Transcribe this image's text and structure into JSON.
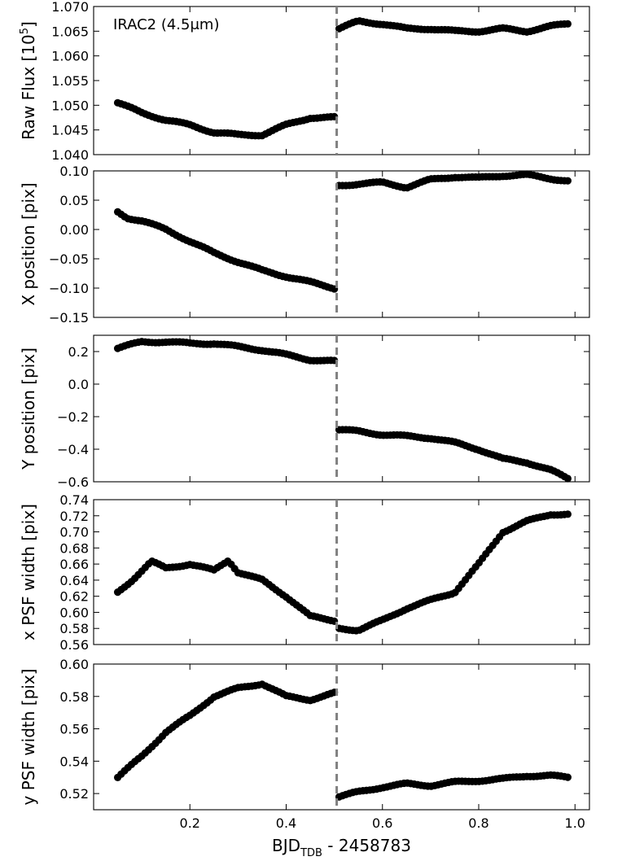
{
  "chart_data": {
    "type": "scatter",
    "xlabel": {
      "main": "BJD",
      "sub": "TDB",
      "suffix": " - 2458783"
    },
    "xlim": [
      0.0,
      1.03
    ],
    "xticks": [
      0.2,
      0.4,
      0.6,
      0.8,
      1.0
    ],
    "xtick_labels": [
      "0.2",
      "0.4",
      "0.6",
      "0.8",
      "1.0"
    ],
    "grid": false,
    "marker_color": "#000000",
    "vline": {
      "x": 0.505,
      "style": "dashed",
      "color": "#808080"
    },
    "annotation": {
      "text": "IRAC2 (4.5μm)",
      "location": "top-left",
      "panel": 0
    },
    "panels": [
      {
        "name": "raw-flux",
        "ylabel_main": "Raw Flux [10",
        "ylabel_sup": "5",
        "ylabel_end": "]",
        "ylim": [
          1.04,
          1.07
        ],
        "yticks": [
          1.04,
          1.045,
          1.05,
          1.055,
          1.06,
          1.065,
          1.07
        ],
        "ytick_labels": [
          "1.040",
          "1.045",
          "1.050",
          "1.055",
          "1.060",
          "1.065",
          "1.070"
        ],
        "segments": [
          {
            "x": [
              0.05,
              0.1,
              0.15,
              0.2,
              0.25,
              0.3,
              0.35,
              0.4,
              0.45,
              0.5
            ],
            "y": [
              1.0505,
              1.0485,
              1.047,
              1.046,
              1.0445,
              1.044,
              1.044,
              1.046,
              1.0475,
              1.0475
            ]
          },
          {
            "x": [
              0.51,
              0.55,
              0.6,
              0.65,
              0.7,
              0.75,
              0.8,
              0.85,
              0.9,
              0.95,
              0.985
            ],
            "y": [
              1.0655,
              1.067,
              1.0665,
              1.0655,
              1.0655,
              1.065,
              1.065,
              1.0655,
              1.065,
              1.066,
              1.0665
            ]
          }
        ]
      },
      {
        "name": "x-position",
        "ylabel_main": "X position [pix]",
        "ylim": [
          -0.15,
          0.1
        ],
        "yticks": [
          -0.15,
          -0.1,
          -0.05,
          0.0,
          0.05,
          0.1
        ],
        "ytick_labels": [
          "−0.15",
          "−0.10",
          "−0.05",
          "0.00",
          "0.05",
          "0.10"
        ],
        "segments": [
          {
            "x": [
              0.05,
              0.07,
              0.1,
              0.15,
              0.2,
              0.25,
              0.3,
              0.35,
              0.4,
              0.45,
              0.5
            ],
            "y": [
              0.03,
              0.02,
              0.015,
              0.0,
              -0.02,
              -0.04,
              -0.055,
              -0.07,
              -0.08,
              -0.09,
              -0.1
            ]
          },
          {
            "x": [
              0.51,
              0.55,
              0.6,
              0.65,
              0.7,
              0.75,
              0.8,
              0.85,
              0.9,
              0.95,
              0.985
            ],
            "y": [
              0.075,
              0.078,
              0.08,
              0.072,
              0.085,
              0.09,
              0.088,
              0.092,
              0.093,
              0.087,
              0.083
            ]
          }
        ]
      },
      {
        "name": "y-position",
        "ylabel_main": "Y position [pix]",
        "ylim": [
          -0.6,
          0.3
        ],
        "yticks": [
          -0.6,
          -0.4,
          -0.2,
          0.0,
          0.2
        ],
        "ytick_labels": [
          "−0.6",
          "−0.4",
          "−0.2",
          "0.0",
          "0.2"
        ],
        "segments": [
          {
            "x": [
              0.05,
              0.1,
              0.15,
              0.2,
              0.25,
              0.3,
              0.35,
              0.4,
              0.45,
              0.5
            ],
            "y": [
              0.22,
              0.26,
              0.26,
              0.25,
              0.25,
              0.23,
              0.21,
              0.18,
              0.15,
              0.14
            ]
          },
          {
            "x": [
              0.51,
              0.55,
              0.6,
              0.65,
              0.7,
              0.75,
              0.8,
              0.85,
              0.9,
              0.95,
              0.985
            ],
            "y": [
              -0.28,
              -0.29,
              -0.31,
              -0.32,
              -0.33,
              -0.36,
              -0.4,
              -0.46,
              -0.48,
              -0.53,
              -0.58
            ]
          }
        ]
      },
      {
        "name": "x-psf-width",
        "ylabel_main": "x PSF width [pix]",
        "ylim": [
          0.56,
          0.74
        ],
        "yticks": [
          0.56,
          0.58,
          0.6,
          0.62,
          0.64,
          0.66,
          0.68,
          0.7,
          0.72,
          0.74
        ],
        "ytick_labels": [
          "0.56",
          "0.58",
          "0.60",
          "0.62",
          "0.64",
          "0.66",
          "0.68",
          "0.70",
          "0.72",
          "0.74"
        ],
        "segments": [
          {
            "x": [
              0.05,
              0.08,
              0.12,
              0.15,
              0.2,
              0.25,
              0.28,
              0.3,
              0.35,
              0.4,
              0.45,
              0.5
            ],
            "y": [
              0.625,
              0.64,
              0.663,
              0.655,
              0.66,
              0.652,
              0.665,
              0.65,
              0.64,
              0.62,
              0.595,
              0.59
            ]
          },
          {
            "x": [
              0.51,
              0.55,
              0.6,
              0.65,
              0.7,
              0.75,
              0.8,
              0.85,
              0.9,
              0.95,
              0.985
            ],
            "y": [
              0.58,
              0.578,
              0.59,
              0.605,
              0.615,
              0.625,
              0.66,
              0.7,
              0.713,
              0.722,
              0.722
            ]
          }
        ]
      },
      {
        "name": "y-psf-width",
        "ylabel_main": "y PSF width [pix]",
        "ylim": [
          0.51,
          0.6
        ],
        "yticks": [
          0.52,
          0.54,
          0.56,
          0.58,
          0.6
        ],
        "ytick_labels": [
          "0.52",
          "0.54",
          "0.56",
          "0.58",
          "0.60"
        ],
        "segments": [
          {
            "x": [
              0.05,
              0.1,
              0.15,
              0.2,
              0.25,
              0.3,
              0.35,
              0.4,
              0.45,
              0.5
            ],
            "y": [
              0.53,
              0.543,
              0.558,
              0.568,
              0.58,
              0.585,
              0.588,
              0.58,
              0.578,
              0.582
            ]
          },
          {
            "x": [
              0.51,
              0.55,
              0.6,
              0.65,
              0.7,
              0.75,
              0.8,
              0.85,
              0.9,
              0.95,
              0.985
            ],
            "y": [
              0.518,
              0.521,
              0.524,
              0.526,
              0.525,
              0.527,
              0.528,
              0.529,
              0.531,
              0.531,
              0.53
            ]
          }
        ]
      }
    ]
  }
}
